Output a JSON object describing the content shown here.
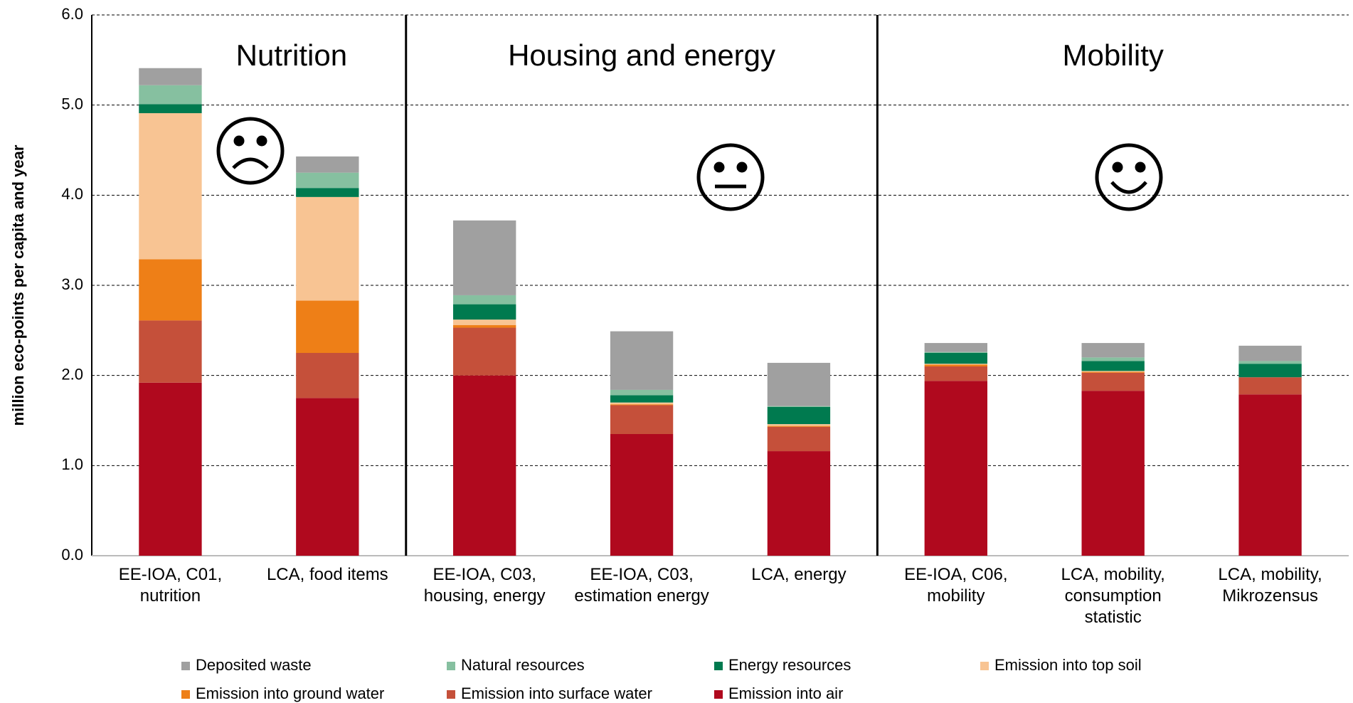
{
  "chart_data": {
    "type": "stacked_bar",
    "y_label": "million eco-points per capita and year",
    "annotations": [
      "Nutrition",
      "Housing and energy",
      "Mobility"
    ],
    "categories": [
      "EE-IOA, C01, nutrition",
      "LCA, food items",
      "EE-IOA, C03, housing, energy",
      "EE-IOA, C03, estimation energy",
      "LCA, energy",
      "EE-IOA, C06, mobility",
      "LCA, mobility, consumption statistic",
      "LCA, mobility, Mikrozensus"
    ],
    "series": [
      {
        "name": "Emission into air",
        "color": "#b0091e",
        "values": [
          1.92,
          1.75,
          2.0,
          1.35,
          1.16,
          1.94,
          1.83,
          1.79
        ]
      },
      {
        "name": "Emission into surface water",
        "color": "#c5503a",
        "values": [
          0.69,
          0.5,
          0.53,
          0.32,
          0.27,
          0.16,
          0.2,
          0.19
        ]
      },
      {
        "name": "Emission into ground water",
        "color": "#ee7f17",
        "values": [
          0.68,
          0.58,
          0.03,
          0.01,
          0.01,
          0.02,
          0.01,
          0.0
        ]
      },
      {
        "name": "Emission into top soil",
        "color": "#f8c493",
        "values": [
          1.62,
          1.15,
          0.06,
          0.02,
          0.02,
          0.01,
          0.01,
          0.0
        ]
      },
      {
        "name": "Energy resources",
        "color": "#007a4f",
        "values": [
          0.1,
          0.1,
          0.17,
          0.08,
          0.19,
          0.12,
          0.11,
          0.15
        ]
      },
      {
        "name": "Natural resources",
        "color": "#86c0a0",
        "values": [
          0.21,
          0.17,
          0.1,
          0.06,
          0.01,
          0.01,
          0.04,
          0.03
        ]
      },
      {
        "name": "Deposited waste",
        "color": "#a0a0a0",
        "values": [
          0.19,
          0.18,
          0.83,
          0.65,
          0.48,
          0.1,
          0.16,
          0.17
        ]
      }
    ],
    "ylim": [
      0,
      6
    ],
    "yticks": [
      {
        "value": 0,
        "label": "0.0"
      },
      {
        "value": 1,
        "label": "1.0"
      },
      {
        "value": 2,
        "label": "2.0"
      },
      {
        "value": 3,
        "label": "3.0"
      },
      {
        "value": 4,
        "label": "4.0"
      },
      {
        "value": 5,
        "label": "5.0"
      },
      {
        "value": 6,
        "label": "6.0"
      }
    ],
    "grid": true,
    "legend": "bottom"
  }
}
